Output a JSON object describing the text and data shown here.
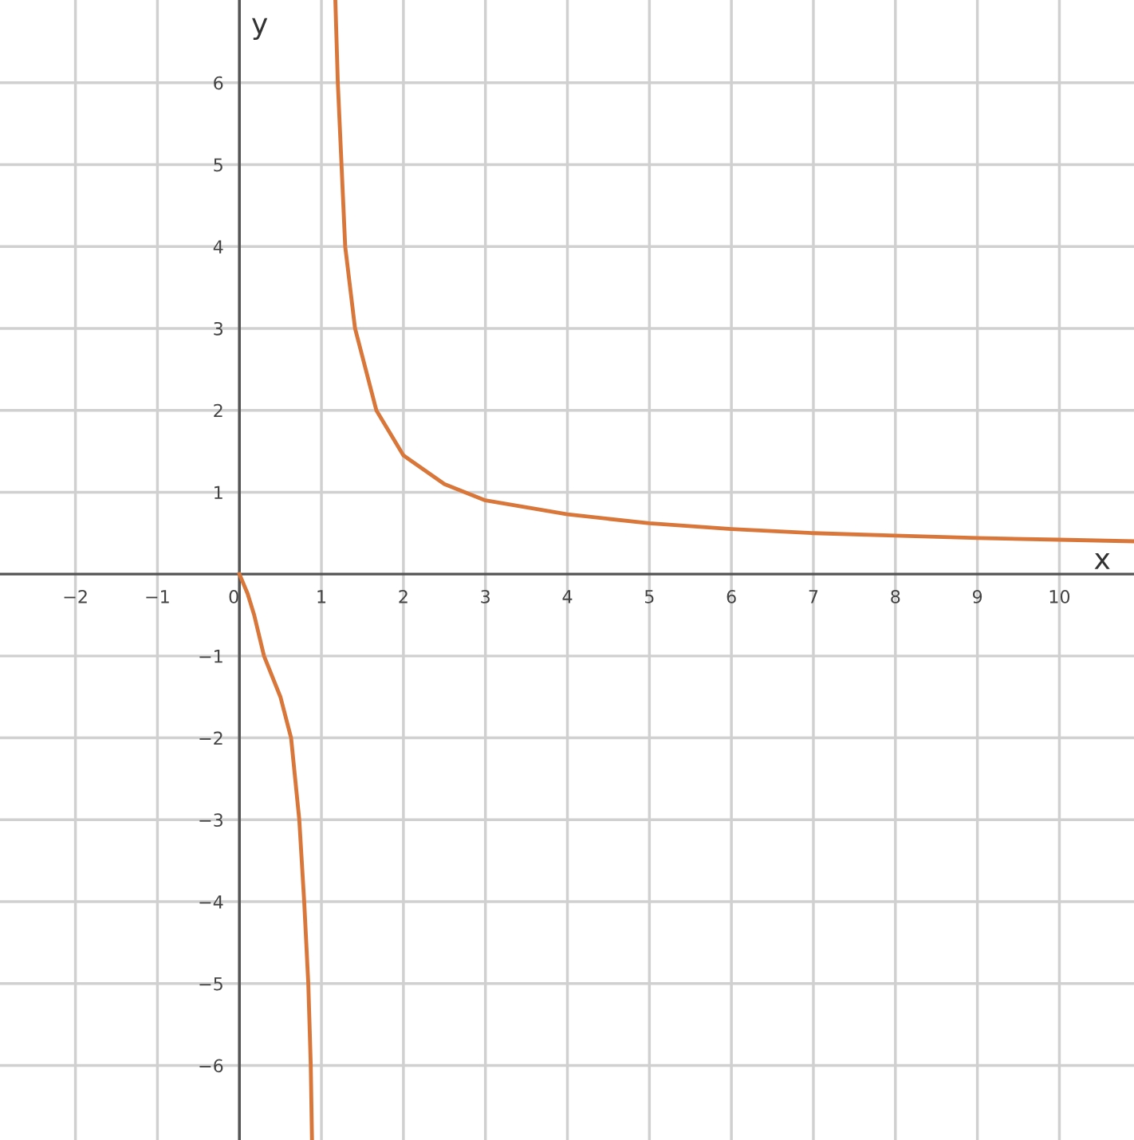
{
  "chart_data": {
    "type": "line",
    "xlabel": "x",
    "ylabel": "y",
    "xlim": [
      -2.92,
      10.91
    ],
    "ylim": [
      -6.91,
      7.01
    ],
    "xticks": [
      {
        "value": -2,
        "label": "−2"
      },
      {
        "value": -1,
        "label": "−1"
      },
      0,
      1,
      2,
      3,
      4,
      5,
      6,
      7,
      8,
      9,
      10
    ],
    "yticks": [
      {
        "value": -6,
        "label": "−6"
      },
      {
        "value": -5,
        "label": "−5"
      },
      {
        "value": -4,
        "label": "−4"
      },
      {
        "value": -3,
        "label": "−3"
      },
      {
        "value": -2,
        "label": "−2"
      },
      {
        "value": -1,
        "label": "−1"
      },
      1,
      2,
      3,
      4,
      5,
      6
    ],
    "grid": true,
    "line_style": "solid",
    "marker": "none",
    "series": [
      {
        "color": "#d9773a",
        "x": [
          1.17,
          1.2,
          1.245,
          1.29,
          1.41,
          1.67,
          2,
          2.5,
          3,
          4,
          5,
          6,
          7,
          8,
          9,
          10,
          10.91
        ],
        "values": [
          7.0,
          6,
          5,
          4,
          3,
          2,
          1.45,
          1.1,
          0.9,
          0.73,
          0.62,
          0.55,
          0.5,
          0.47,
          0.44,
          0.42,
          0.4
        ]
      },
      {
        "color": "#d9773a",
        "x": [
          0,
          0.1,
          0.18,
          0.3,
          0.5,
          0.63,
          0.73,
          0.79,
          0.84,
          0.87,
          0.885
        ],
        "values": [
          0,
          -0.24,
          -0.5,
          -1,
          -1.5,
          -2,
          -3,
          -4,
          -5,
          -6,
          -6.9
        ]
      }
    ]
  }
}
